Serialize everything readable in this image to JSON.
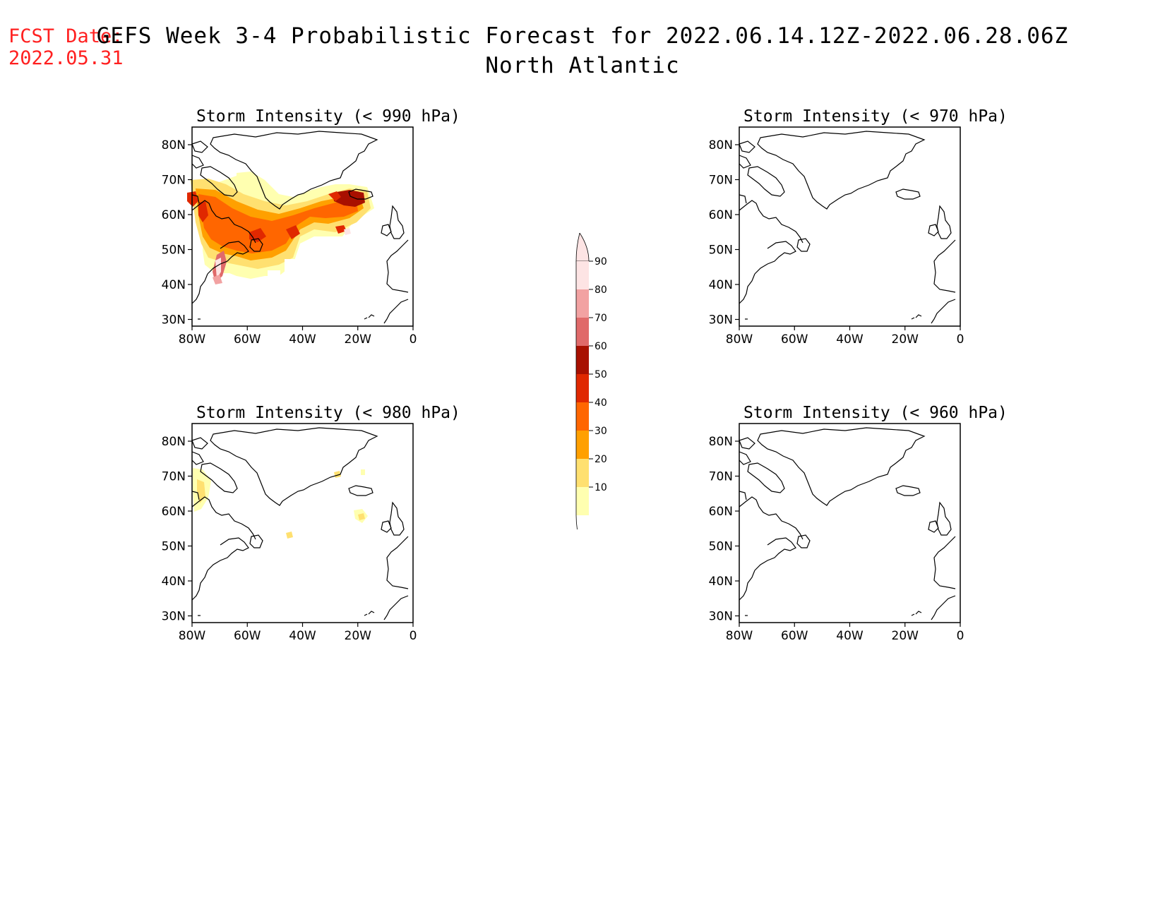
{
  "header": {
    "fcst_label": "FCST Date:",
    "fcst_date": "2022.05.31",
    "title_line1": "GEFS Week 3-4 Probabilistic Forecast for 2022.06.14.12Z-2022.06.28.06Z",
    "title_line2": "North Atlantic"
  },
  "panels": [
    {
      "id": "p990",
      "title": "Storm Intensity (< 990 hPa)"
    },
    {
      "id": "p970",
      "title": "Storm Intensity (< 970 hPa)"
    },
    {
      "id": "p980",
      "title": "Storm Intensity (< 980 hPa)"
    },
    {
      "id": "p960",
      "title": "Storm Intensity (< 960 hPa)"
    }
  ],
  "axes": {
    "lat_labels": [
      "80N",
      "70N",
      "60N",
      "50N",
      "40N",
      "30N"
    ],
    "lon_labels": [
      "80W",
      "60W",
      "40W",
      "20W",
      "0"
    ]
  },
  "colorbar": {
    "levels": [
      "90",
      "80",
      "70",
      "60",
      "50",
      "40",
      "30",
      "20",
      "10"
    ],
    "colors": [
      "#fde4e4",
      "#f2a2a2",
      "#e06a6a",
      "#a81000",
      "#e02800",
      "#ff6600",
      "#ffa000",
      "#ffe070",
      "#ffffb0"
    ]
  }
}
